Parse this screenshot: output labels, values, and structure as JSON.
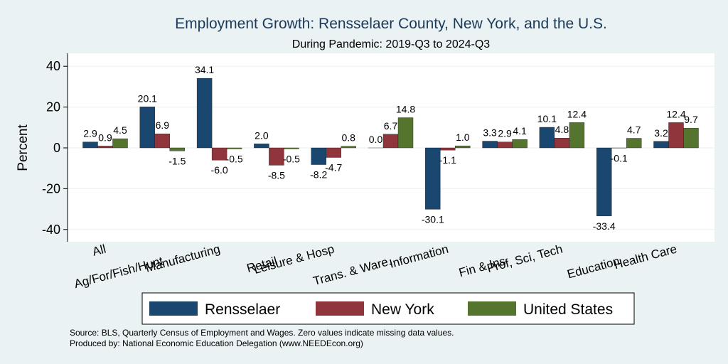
{
  "chart_data": {
    "type": "bar",
    "title": "Employment Growth: Rensselaer County, New York, and the U.S.",
    "subtitle": "During Pandemic: 2019-Q3 to 2024-Q3",
    "ylabel": "Percent",
    "xlabel": "",
    "ylim": [
      -46,
      46
    ],
    "yticks": [
      -40,
      -20,
      0,
      20,
      40
    ],
    "categories": [
      "All",
      "Ag/For/Fish/Hunt",
      "Manufacturing",
      "Retail",
      "Leisure & Hosp",
      "Trans. & Ware.",
      "Information",
      "Fin & Ins",
      "Prof, Sci, Tech",
      "Education",
      "Health Care"
    ],
    "series": [
      {
        "name": "Rensselaer",
        "color": "#1a476f",
        "values": [
          2.9,
          20.1,
          34.1,
          2.0,
          -8.2,
          0.0,
          -30.1,
          3.3,
          10.1,
          -33.4,
          3.2
        ]
      },
      {
        "name": "New York",
        "color": "#90353b",
        "values": [
          0.9,
          6.9,
          -6.0,
          -8.5,
          -4.7,
          6.7,
          -1.1,
          2.9,
          4.8,
          -0.1,
          12.4
        ]
      },
      {
        "name": "United States",
        "color": "#55752f",
        "values": [
          4.5,
          -1.5,
          -0.5,
          -0.5,
          0.8,
          14.8,
          1.0,
          4.1,
          12.4,
          4.7,
          9.7
        ]
      }
    ],
    "legend_position": "bottom",
    "grid": true
  },
  "notes": {
    "source": "Source: BLS, Quarterly Census of Employment and Wages. Zero values indicate missing data values.",
    "produced": "Produced by: National Economic Education Delegation (www.NEEDEcon.org)"
  }
}
